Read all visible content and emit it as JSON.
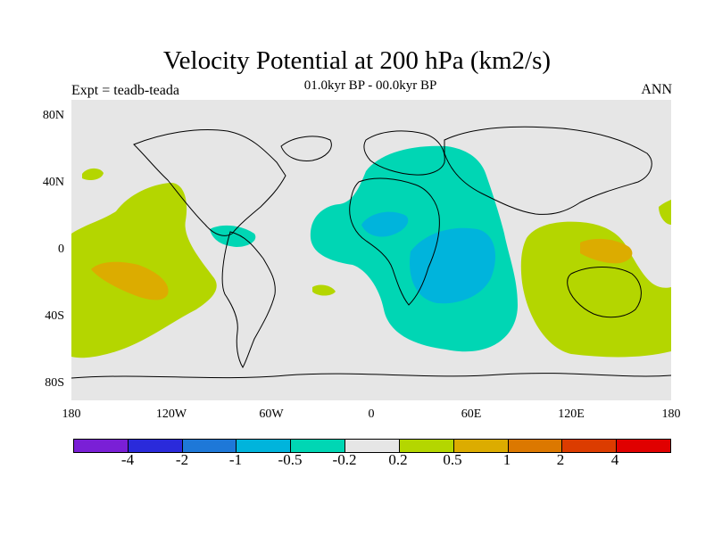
{
  "title": "Velocity Potential at 200 hPa (km2/s)",
  "subtitle": "01.0kyr BP - 00.0kyr BP",
  "experiment_label": "Expt = teadb-teada",
  "period_label": "ANN",
  "map": {
    "ocean_color": "#e6e6e6",
    "lat_labels": [
      "80N",
      "40N",
      "0",
      "40S",
      "80S"
    ],
    "lon_labels": [
      "180",
      "120W",
      "60W",
      "0",
      "60E",
      "120E",
      "180"
    ]
  },
  "colorbar": {
    "colors": [
      "#7a1fd6",
      "#2a2adb",
      "#1e78d8",
      "#00b4dc",
      "#00d6b4",
      "#e6e6e6",
      "#b4d600",
      "#dcac00",
      "#dc7800",
      "#dc3c00",
      "#e00000"
    ],
    "labels": [
      "-4",
      "-2",
      "-1",
      "-0.5",
      "-0.2",
      "0.2",
      "0.5",
      "1",
      "2",
      "4"
    ]
  }
}
